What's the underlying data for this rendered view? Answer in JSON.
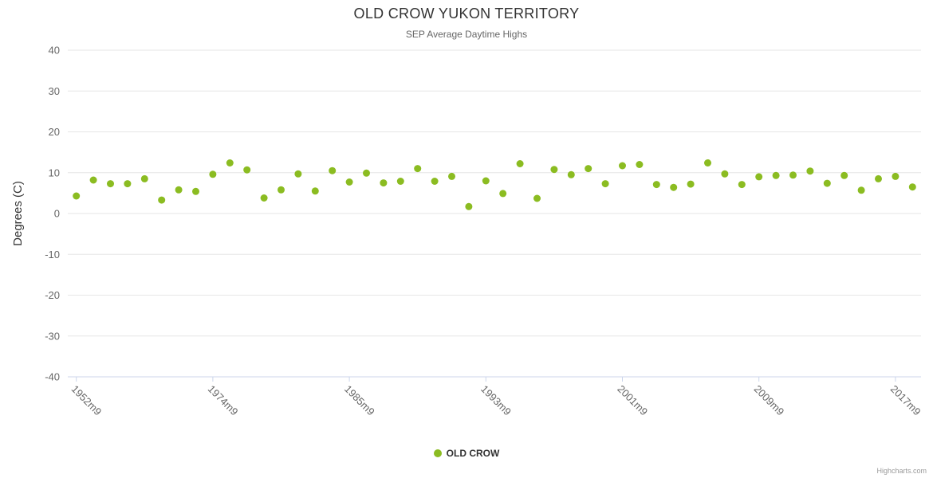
{
  "title": "OLD CROW YUKON TERRITORY",
  "subtitle": "SEP Average Daytime Highs",
  "credits_label": "Highcharts.com",
  "legend": {
    "series_label": "OLD CROW"
  },
  "colors": {
    "marker": "#8bbc21",
    "grid": "#e6e6e6",
    "axis_line": "#ccd6eb",
    "title_text": "#333333",
    "subtitle_text": "#666666",
    "axis_label_text": "#666666",
    "axis_title_text": "#333333",
    "legend_text": "#333333",
    "credits_text": "#999999"
  },
  "chart_data": {
    "type": "scatter",
    "title": "OLD CROW YUKON TERRITORY",
    "subtitle": "SEP Average Daytime Highs",
    "xlabel": "",
    "ylabel": "Degrees (C)",
    "ylim": [
      -40,
      40
    ],
    "y_ticks": [
      40,
      30,
      20,
      10,
      0,
      -10,
      -20,
      -30,
      -40
    ],
    "x_ticks": [
      {
        "label": "1952m9",
        "index": 0
      },
      {
        "label": "1974m9",
        "index": 8
      },
      {
        "label": "1985m9",
        "index": 16
      },
      {
        "label": "1993m9",
        "index": 24
      },
      {
        "label": "2001m9",
        "index": 32
      },
      {
        "label": "2009m9",
        "index": 40
      },
      {
        "label": "2017m9",
        "index": 48
      }
    ],
    "grid": true,
    "legend_position": "bottom",
    "series": [
      {
        "name": "OLD CROW",
        "values": [
          4.3,
          8.2,
          7.3,
          7.3,
          8.5,
          3.3,
          5.8,
          5.4,
          9.6,
          12.4,
          10.7,
          3.8,
          5.8,
          9.7,
          5.5,
          10.5,
          7.7,
          9.9,
          7.5,
          7.9,
          11.0,
          7.9,
          9.1,
          1.7,
          8.0,
          4.9,
          12.2,
          3.7,
          10.8,
          9.5,
          11.0,
          7.3,
          11.7,
          12.0,
          7.1,
          6.4,
          7.2,
          12.4,
          9.7,
          7.1,
          9.0,
          9.3,
          9.4,
          10.4,
          7.4,
          9.3,
          5.7,
          8.5,
          9.1,
          6.5
        ]
      }
    ]
  }
}
